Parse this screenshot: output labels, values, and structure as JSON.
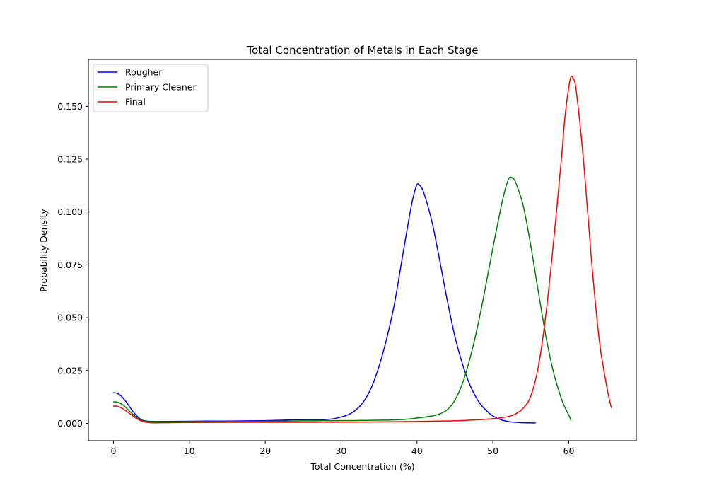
{
  "chart_data": {
    "type": "line",
    "title": "Total Concentration of Metals in Each Stage",
    "xlabel": "Total Concentration (%)",
    "ylabel": "Probability Density",
    "xlim": [
      -3.3,
      68.9
    ],
    "ylim": [
      -0.0082,
      0.1722
    ],
    "xticks": [
      0,
      10,
      20,
      30,
      40,
      50,
      60
    ],
    "xtick_labels": [
      "0",
      "10",
      "20",
      "30",
      "40",
      "50",
      "60"
    ],
    "yticks": [
      0.0,
      0.025,
      0.05,
      0.075,
      0.1,
      0.125,
      0.15
    ],
    "ytick_labels": [
      "0.000",
      "0.025",
      "0.050",
      "0.075",
      "0.100",
      "0.125",
      "0.150"
    ],
    "grid": false,
    "legend_position": "top-left",
    "series": [
      {
        "name": "Rougher",
        "color": "#0000ff",
        "points": [
          [
            0,
            0.0145
          ],
          [
            0.5,
            0.0142
          ],
          [
            1,
            0.013
          ],
          [
            1.5,
            0.011
          ],
          [
            2,
            0.0085
          ],
          [
            2.5,
            0.006
          ],
          [
            3,
            0.0038
          ],
          [
            3.5,
            0.0022
          ],
          [
            4,
            0.0013
          ],
          [
            5,
            0.0009
          ],
          [
            7,
            0.0009
          ],
          [
            10,
            0.001
          ],
          [
            12,
            0.0011
          ],
          [
            15,
            0.0011
          ],
          [
            18,
            0.0012
          ],
          [
            20,
            0.0013
          ],
          [
            22,
            0.0015
          ],
          [
            24,
            0.0017
          ],
          [
            26,
            0.0017
          ],
          [
            28,
            0.0018
          ],
          [
            29,
            0.0022
          ],
          [
            30,
            0.003
          ],
          [
            31,
            0.0042
          ],
          [
            32,
            0.0065
          ],
          [
            33,
            0.0105
          ],
          [
            34,
            0.017
          ],
          [
            35,
            0.027
          ],
          [
            36,
            0.04
          ],
          [
            37,
            0.056
          ],
          [
            38,
            0.077
          ],
          [
            39,
            0.098
          ],
          [
            39.5,
            0.107
          ],
          [
            40,
            0.113
          ],
          [
            40.5,
            0.112
          ],
          [
            41,
            0.108
          ],
          [
            42,
            0.095
          ],
          [
            43,
            0.077
          ],
          [
            44,
            0.058
          ],
          [
            45,
            0.041
          ],
          [
            46,
            0.028
          ],
          [
            47,
            0.018
          ],
          [
            48,
            0.011
          ],
          [
            49,
            0.0065
          ],
          [
            50,
            0.0035
          ],
          [
            51,
            0.0018
          ],
          [
            52,
            0.0009
          ],
          [
            53,
            0.0005
          ],
          [
            54,
            0.0003
          ],
          [
            55.6,
            0.0002
          ]
        ]
      },
      {
        "name": "Primary Cleaner",
        "color": "#008000",
        "points": [
          [
            0,
            0.0102
          ],
          [
            0.5,
            0.0101
          ],
          [
            1,
            0.0093
          ],
          [
            1.5,
            0.008
          ],
          [
            2,
            0.0062
          ],
          [
            2.5,
            0.0045
          ],
          [
            3,
            0.003
          ],
          [
            3.5,
            0.0018
          ],
          [
            4,
            0.0011
          ],
          [
            5,
            0.0007
          ],
          [
            7,
            0.0007
          ],
          [
            10,
            0.0008
          ],
          [
            15,
            0.0009
          ],
          [
            20,
            0.001
          ],
          [
            25,
            0.0012
          ],
          [
            30,
            0.0013
          ],
          [
            35,
            0.0015
          ],
          [
            38,
            0.0018
          ],
          [
            40,
            0.0025
          ],
          [
            42,
            0.0035
          ],
          [
            43,
            0.0045
          ],
          [
            44,
            0.0065
          ],
          [
            45,
            0.011
          ],
          [
            46,
            0.019
          ],
          [
            47,
            0.031
          ],
          [
            48,
            0.046
          ],
          [
            49,
            0.064
          ],
          [
            50,
            0.083
          ],
          [
            51,
            0.101
          ],
          [
            51.5,
            0.109
          ],
          [
            52,
            0.115
          ],
          [
            52.3,
            0.1165
          ],
          [
            52.6,
            0.116
          ],
          [
            53,
            0.114
          ],
          [
            54,
            0.103
          ],
          [
            55,
            0.084
          ],
          [
            56,
            0.062
          ],
          [
            57,
            0.041
          ],
          [
            58,
            0.024
          ],
          [
            59,
            0.012
          ],
          [
            59.5,
            0.0075
          ],
          [
            60,
            0.004
          ],
          [
            60.3,
            0.0015
          ]
        ]
      },
      {
        "name": "Final",
        "color": "#ff0000",
        "points": [
          [
            0,
            0.0082
          ],
          [
            0.5,
            0.0081
          ],
          [
            1,
            0.0074
          ],
          [
            1.5,
            0.0063
          ],
          [
            2,
            0.005
          ],
          [
            2.5,
            0.0037
          ],
          [
            3,
            0.0024
          ],
          [
            3.5,
            0.0014
          ],
          [
            4,
            0.0007
          ],
          [
            5,
            0.0003
          ],
          [
            7,
            0.0003
          ],
          [
            10,
            0.0004
          ],
          [
            15,
            0.0005
          ],
          [
            20,
            0.0005
          ],
          [
            25,
            0.0005
          ],
          [
            30,
            0.0006
          ],
          [
            35,
            0.0007
          ],
          [
            40,
            0.0009
          ],
          [
            45,
            0.0012
          ],
          [
            48,
            0.0017
          ],
          [
            50,
            0.0022
          ],
          [
            52,
            0.0032
          ],
          [
            53,
            0.0045
          ],
          [
            54,
            0.0072
          ],
          [
            55,
            0.013
          ],
          [
            56,
            0.027
          ],
          [
            57,
            0.052
          ],
          [
            58,
            0.086
          ],
          [
            59,
            0.124
          ],
          [
            59.5,
            0.145
          ],
          [
            60,
            0.159
          ],
          [
            60.3,
            0.164
          ],
          [
            60.6,
            0.163
          ],
          [
            61,
            0.157
          ],
          [
            62,
            0.122
          ],
          [
            63,
            0.077
          ],
          [
            64,
            0.04
          ],
          [
            65,
            0.0175
          ],
          [
            65.6,
            0.0075
          ]
        ]
      }
    ]
  }
}
